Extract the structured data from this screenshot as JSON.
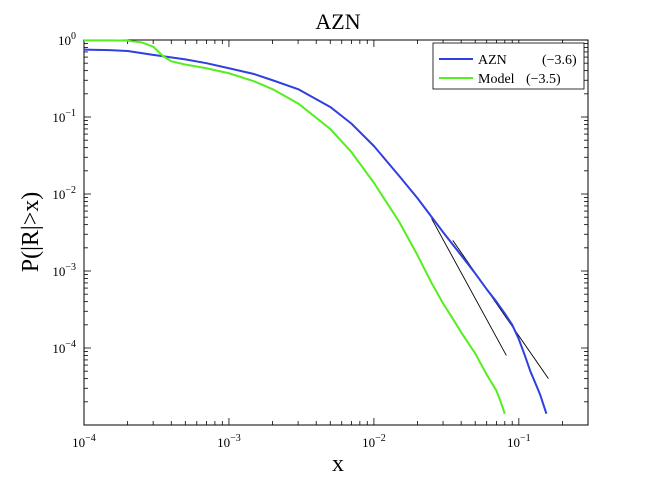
{
  "chart_data": {
    "type": "line",
    "title": "AZN",
    "xlabel": "x",
    "ylabel": "P(|R|>x)",
    "xscale": "log",
    "yscale": "log",
    "xlim": [
      0.0001,
      0.3
    ],
    "ylim": [
      1e-05,
      1
    ],
    "grid": false,
    "legend_position": "top-right",
    "x_ticks": [
      {
        "value": 0.0001,
        "base": "10",
        "exp": "−4"
      },
      {
        "value": 0.001,
        "base": "10",
        "exp": "−3"
      },
      {
        "value": 0.01,
        "base": "10",
        "exp": "−2"
      },
      {
        "value": 0.1,
        "base": "10",
        "exp": "−1"
      }
    ],
    "y_ticks": [
      {
        "value": 1,
        "base": "10",
        "exp": "0"
      },
      {
        "value": 0.1,
        "base": "10",
        "exp": "−1"
      },
      {
        "value": 0.01,
        "base": "10",
        "exp": "−2"
      },
      {
        "value": 0.001,
        "base": "10",
        "exp": "−3"
      },
      {
        "value": 0.0001,
        "base": "10",
        "exp": "−4"
      }
    ],
    "series": [
      {
        "name": "AZN",
        "legend_value": "(−3.6)",
        "color": "#2f3fe0",
        "x": [
          0.0001,
          0.00015,
          0.0002,
          0.0003,
          0.0005,
          0.0007,
          0.001,
          0.0015,
          0.002,
          0.003,
          0.005,
          0.007,
          0.01,
          0.015,
          0.02,
          0.03,
          0.04,
          0.05,
          0.06,
          0.07,
          0.08,
          0.09,
          0.1,
          0.11,
          0.12,
          0.13,
          0.14,
          0.155
        ],
        "y": [
          0.75,
          0.74,
          0.72,
          0.64,
          0.56,
          0.5,
          0.43,
          0.36,
          0.3,
          0.23,
          0.135,
          0.082,
          0.042,
          0.017,
          0.0088,
          0.0032,
          0.0016,
          0.00093,
          0.00058,
          0.0004,
          0.00028,
          0.0002,
          0.00013,
          8e-05,
          5e-05,
          3.5e-05,
          2.5e-05,
          1.4e-05
        ]
      },
      {
        "name": "Model",
        "legend_value": "(−3.5)",
        "color": "#55ee1f",
        "x": [
          0.0001,
          0.00015,
          0.0002,
          0.00025,
          0.0003,
          0.00035,
          0.0004,
          0.0005,
          0.0007,
          0.001,
          0.0015,
          0.002,
          0.003,
          0.005,
          0.007,
          0.01,
          0.015,
          0.02,
          0.025,
          0.03,
          0.035,
          0.04,
          0.05,
          0.06,
          0.07,
          0.075,
          0.08
        ],
        "y": [
          0.99,
          0.99,
          0.98,
          0.93,
          0.82,
          0.62,
          0.53,
          0.48,
          0.43,
          0.37,
          0.29,
          0.23,
          0.15,
          0.07,
          0.035,
          0.014,
          0.0043,
          0.0016,
          0.0007,
          0.00038,
          0.00024,
          0.00016,
          8.5e-05,
          4.5e-05,
          2.8e-05,
          2e-05,
          1.4e-05
        ]
      }
    ],
    "fit_lines": [
      {
        "color": "#000000",
        "x": [
          0.025,
          0.082
        ],
        "y": [
          0.0048,
          8e-05
        ]
      },
      {
        "color": "#000000",
        "x": [
          0.035,
          0.16
        ],
        "y": [
          0.0025,
          4e-05
        ]
      }
    ]
  }
}
